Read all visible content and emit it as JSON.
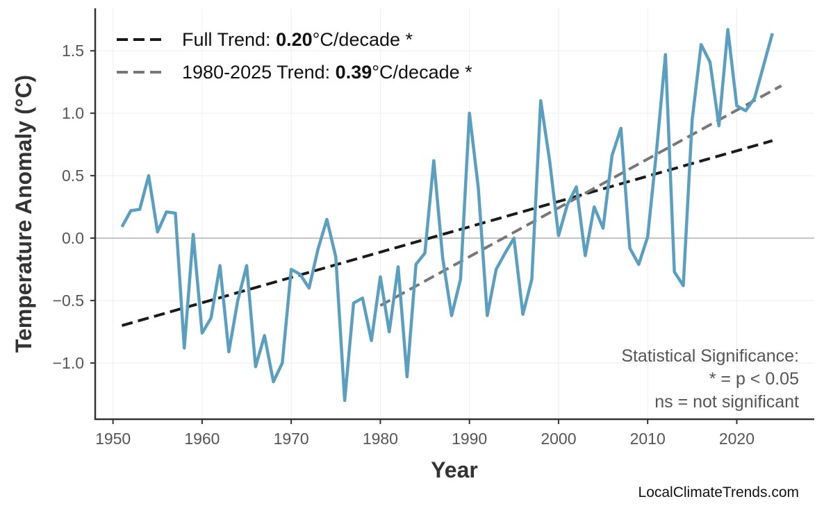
{
  "chart_data": {
    "type": "line",
    "xlabel": "Year",
    "ylabel": "Temperature Anomaly (°C)",
    "xlim": [
      1948,
      2028.7
    ],
    "ylim": [
      -1.45,
      1.84
    ],
    "xticks": [
      1950,
      1960,
      1970,
      1980,
      1990,
      2000,
      2010,
      2020
    ],
    "yticks": [
      -1.0,
      -0.5,
      0.0,
      0.5,
      1.0,
      1.5
    ],
    "ytick_labels": [
      "−1.0",
      "−0.5",
      "0.0",
      "0.5",
      "1.0",
      "1.5"
    ],
    "grid": true,
    "zero_line": true,
    "legend_position": "top-left",
    "series": [
      {
        "color": "#5a9fc0",
        "x": [
          1951,
          1952,
          1953,
          1954,
          1955,
          1956,
          1957,
          1958,
          1959,
          1960,
          1961,
          1962,
          1963,
          1964,
          1965,
          1966,
          1967,
          1968,
          1969,
          1970,
          1971,
          1972,
          1973,
          1974,
          1975,
          1976,
          1977,
          1978,
          1979,
          1980,
          1981,
          1982,
          1983,
          1984,
          1985,
          1986,
          1987,
          1988,
          1989,
          1990,
          1991,
          1992,
          1993,
          1994,
          1995,
          1996,
          1997,
          1998,
          1999,
          2000,
          2001,
          2002,
          2003,
          2004,
          2005,
          2006,
          2007,
          2008,
          2009,
          2010,
          2011,
          2012,
          2013,
          2014,
          2015,
          2016,
          2017,
          2018,
          2019,
          2020,
          2021,
          2022,
          2023,
          2024
        ],
        "y": [
          0.09,
          0.22,
          0.23,
          0.5,
          0.05,
          0.21,
          0.2,
          -0.88,
          0.03,
          -0.76,
          -0.64,
          -0.22,
          -0.91,
          -0.5,
          -0.22,
          -1.03,
          -0.78,
          -1.15,
          -1.0,
          -0.25,
          -0.29,
          -0.4,
          -0.09,
          0.15,
          -0.15,
          -1.3,
          -0.52,
          -0.48,
          -0.82,
          -0.31,
          -0.75,
          -0.23,
          -1.11,
          -0.21,
          -0.12,
          0.62,
          -0.16,
          -0.62,
          -0.33,
          1.0,
          0.4,
          -0.62,
          -0.25,
          -0.12,
          0.0,
          -0.61,
          -0.33,
          1.1,
          0.62,
          0.02,
          0.27,
          0.41,
          -0.14,
          0.25,
          0.08,
          0.66,
          0.88,
          -0.08,
          -0.21,
          0.01,
          0.7,
          1.47,
          -0.27,
          -0.38,
          0.95,
          1.55,
          1.41,
          0.9,
          1.67,
          1.06,
          1.02,
          1.12,
          1.38,
          1.64
        ]
      }
    ],
    "trends": [
      {
        "label_prefix": "Full Trend: ",
        "value": "0.20",
        "label_suffix": "°C/decade *",
        "color": "#1a1a1a",
        "x": [
          1951,
          2024
        ],
        "y": [
          -0.7,
          0.78
        ]
      },
      {
        "label_prefix": "1980-2025 Trend: ",
        "value": "0.39",
        "label_suffix": "°C/decade *",
        "color": "#777777",
        "x": [
          1980,
          2025
        ],
        "y": [
          -0.54,
          1.22
        ]
      }
    ],
    "annotation": [
      "Statistical Significance:",
      "* = p < 0.05",
      "ns = not significant"
    ]
  },
  "watermark": "LocalClimateTrends.com"
}
